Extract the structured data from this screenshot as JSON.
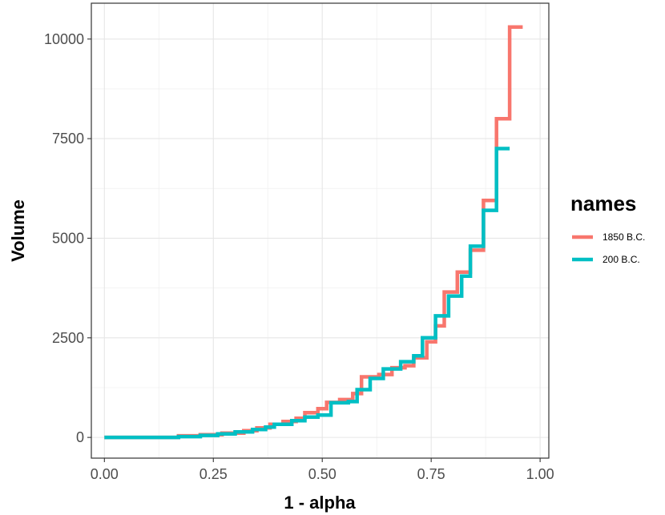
{
  "chart_data": {
    "type": "line",
    "step": true,
    "xlabel": "1 - alpha",
    "ylabel": "Volume",
    "xlim": [
      -0.03,
      1.02
    ],
    "ylim": [
      -520,
      10900
    ],
    "x_ticks": [
      0.0,
      0.25,
      0.5,
      0.75,
      1.0
    ],
    "x_tick_labels": [
      "0.00",
      "0.25",
      "0.50",
      "0.75",
      "1.00"
    ],
    "y_ticks": [
      0,
      2500,
      5000,
      7500,
      10000
    ],
    "y_tick_labels": [
      "0",
      "2500",
      "5000",
      "7500",
      "10000"
    ],
    "grid": true,
    "legend": {
      "title": "names",
      "position": "right"
    },
    "series": [
      {
        "name": "1850 B.C.",
        "color": "#F8766D",
        "points": [
          [
            0.0,
            0
          ],
          [
            0.17,
            0
          ],
          [
            0.17,
            40
          ],
          [
            0.22,
            40
          ],
          [
            0.22,
            70
          ],
          [
            0.27,
            70
          ],
          [
            0.27,
            110
          ],
          [
            0.32,
            110
          ],
          [
            0.32,
            170
          ],
          [
            0.35,
            170
          ],
          [
            0.35,
            240
          ],
          [
            0.38,
            240
          ],
          [
            0.38,
            330
          ],
          [
            0.41,
            330
          ],
          [
            0.41,
            400
          ],
          [
            0.44,
            400
          ],
          [
            0.44,
            480
          ],
          [
            0.46,
            480
          ],
          [
            0.46,
            620
          ],
          [
            0.49,
            620
          ],
          [
            0.49,
            720
          ],
          [
            0.51,
            720
          ],
          [
            0.51,
            880
          ],
          [
            0.54,
            880
          ],
          [
            0.54,
            950
          ],
          [
            0.57,
            950
          ],
          [
            0.57,
            1100
          ],
          [
            0.59,
            1100
          ],
          [
            0.59,
            1520
          ],
          [
            0.63,
            1520
          ],
          [
            0.63,
            1580
          ],
          [
            0.66,
            1580
          ],
          [
            0.66,
            1750
          ],
          [
            0.69,
            1750
          ],
          [
            0.69,
            1800
          ],
          [
            0.71,
            1800
          ],
          [
            0.71,
            2000
          ],
          [
            0.74,
            2000
          ],
          [
            0.74,
            2400
          ],
          [
            0.76,
            2400
          ],
          [
            0.76,
            2800
          ],
          [
            0.78,
            2800
          ],
          [
            0.78,
            3650
          ],
          [
            0.81,
            3650
          ],
          [
            0.81,
            4150
          ],
          [
            0.84,
            4150
          ],
          [
            0.84,
            4700
          ],
          [
            0.87,
            4700
          ],
          [
            0.87,
            5950
          ],
          [
            0.9,
            5950
          ],
          [
            0.9,
            8000
          ],
          [
            0.93,
            8000
          ],
          [
            0.93,
            10300
          ],
          [
            0.96,
            10300
          ]
        ]
      },
      {
        "name": "200 B.C.",
        "color": "#00BFC4",
        "points": [
          [
            0.0,
            0
          ],
          [
            0.17,
            0
          ],
          [
            0.17,
            20
          ],
          [
            0.22,
            20
          ],
          [
            0.22,
            50
          ],
          [
            0.26,
            50
          ],
          [
            0.26,
            90
          ],
          [
            0.3,
            90
          ],
          [
            0.3,
            140
          ],
          [
            0.34,
            140
          ],
          [
            0.34,
            200
          ],
          [
            0.37,
            200
          ],
          [
            0.37,
            260
          ],
          [
            0.39,
            260
          ],
          [
            0.39,
            330
          ],
          [
            0.43,
            330
          ],
          [
            0.43,
            420
          ],
          [
            0.46,
            420
          ],
          [
            0.46,
            510
          ],
          [
            0.49,
            510
          ],
          [
            0.49,
            560
          ],
          [
            0.52,
            560
          ],
          [
            0.52,
            870
          ],
          [
            0.56,
            870
          ],
          [
            0.56,
            900
          ],
          [
            0.58,
            900
          ],
          [
            0.58,
            1200
          ],
          [
            0.61,
            1200
          ],
          [
            0.61,
            1480
          ],
          [
            0.64,
            1480
          ],
          [
            0.64,
            1720
          ],
          [
            0.68,
            1720
          ],
          [
            0.68,
            1900
          ],
          [
            0.71,
            1900
          ],
          [
            0.71,
            2050
          ],
          [
            0.73,
            2050
          ],
          [
            0.73,
            2500
          ],
          [
            0.76,
            2500
          ],
          [
            0.76,
            3050
          ],
          [
            0.79,
            3050
          ],
          [
            0.79,
            3550
          ],
          [
            0.82,
            3550
          ],
          [
            0.82,
            4050
          ],
          [
            0.84,
            4050
          ],
          [
            0.84,
            4800
          ],
          [
            0.87,
            4800
          ],
          [
            0.87,
            5700
          ],
          [
            0.9,
            5700
          ],
          [
            0.9,
            7250
          ],
          [
            0.93,
            7250
          ]
        ]
      }
    ]
  }
}
